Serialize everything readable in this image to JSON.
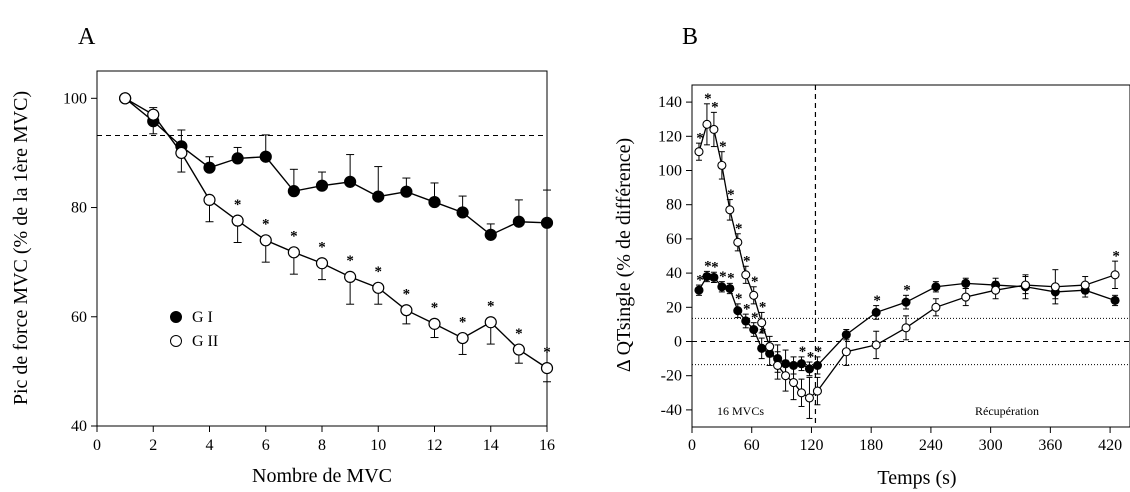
{
  "chart_data": [
    {
      "panel_label": "A",
      "type": "line",
      "xlabel": "Nombre de MVC",
      "ylabel": "Pic de force MVC (% de la 1ère MVC)",
      "xlim": [
        0,
        16
      ],
      "ylim": [
        40,
        105
      ],
      "xticks": [
        0,
        2,
        4,
        6,
        8,
        10,
        12,
        14,
        16
      ],
      "yticks": [
        40,
        60,
        80,
        100
      ],
      "reference_line_y": 93.2,
      "legend_position": "left-middle",
      "series": [
        {
          "name": "G I",
          "marker": "filled-circle",
          "x": [
            1,
            2,
            3,
            4,
            5,
            6,
            7,
            8,
            9,
            10,
            11,
            12,
            13,
            14,
            15,
            16
          ],
          "y": [
            100,
            95.8,
            91.2,
            87.3,
            89,
            89.3,
            83,
            84,
            84.7,
            82,
            82.9,
            81,
            79.1,
            75,
            77.4,
            77.2
          ],
          "err": [
            0,
            2.5,
            3,
            2,
            2,
            4,
            4,
            2.5,
            5,
            5.5,
            2.5,
            3.5,
            3,
            2,
            4,
            6
          ],
          "err_dir": "up",
          "significant": []
        },
        {
          "name": "G II",
          "marker": "open-circle",
          "x": [
            1,
            2,
            3,
            4,
            5,
            6,
            7,
            8,
            9,
            10,
            11,
            12,
            13,
            14,
            15,
            16
          ],
          "y": [
            100,
            97,
            90,
            81.4,
            77.6,
            74,
            71.8,
            69.8,
            67.3,
            65.3,
            61.2,
            58.7,
            56.1,
            59,
            54,
            50.6
          ],
          "err": [
            0,
            3.5,
            3.5,
            4,
            4,
            4,
            4,
            3,
            5,
            3,
            2.5,
            2.5,
            3,
            4,
            2.5,
            2.5
          ],
          "err_dir": "down",
          "significant": [
            5,
            6,
            7,
            8,
            9,
            10,
            11,
            12,
            13,
            14,
            15,
            16
          ]
        }
      ]
    },
    {
      "panel_label": "B",
      "type": "line",
      "xlabel": "Temps (s)",
      "ylabel": "Δ QTsingle (% de différence)",
      "xlim": [
        0,
        440
      ],
      "ylim": [
        -50,
        150
      ],
      "xticks": [
        0,
        60,
        120,
        180,
        240,
        300,
        360,
        420
      ],
      "yticks": [
        -40,
        -20,
        0,
        20,
        40,
        60,
        80,
        100,
        120,
        140
      ],
      "vertical_line_x": 124,
      "dashed_zero_line": 0,
      "dotted_lines_y": [
        13.5,
        -13.5
      ],
      "annotations": [
        {
          "text": "16 MVCs",
          "x": 40,
          "y": -45
        },
        {
          "text": "Récupération",
          "x": 290,
          "y": -45
        }
      ],
      "series": [
        {
          "name": "",
          "marker": "filled-circle",
          "x": [
            7,
            15,
            22,
            30,
            38,
            46,
            54,
            62,
            70,
            78,
            86,
            94,
            102,
            110,
            118,
            126,
            155,
            185,
            215,
            245,
            275,
            305,
            335,
            365,
            395,
            425
          ],
          "y": [
            30,
            38,
            37.5,
            32,
            31,
            18,
            12,
            7,
            -4,
            -7,
            -10,
            -13,
            -14,
            -13,
            -16,
            -14,
            4,
            17,
            23,
            32,
            34,
            33,
            32,
            29,
            30,
            24
          ],
          "err": [
            3,
            3,
            3,
            3,
            3,
            4,
            4,
            4,
            6,
            7,
            8,
            8,
            5,
            4,
            4,
            5,
            3,
            4,
            4,
            3,
            3,
            4,
            7,
            4,
            4,
            3
          ],
          "err_dir": "both",
          "significant": [
            7,
            15,
            22,
            30,
            38,
            46,
            54,
            62,
            70,
            110,
            118,
            126,
            185,
            215
          ]
        },
        {
          "name": "",
          "marker": "open-circle",
          "x": [
            7,
            15,
            22,
            30,
            38,
            46,
            54,
            62,
            70,
            78,
            86,
            94,
            102,
            110,
            118,
            126,
            155,
            185,
            215,
            245,
            275,
            305,
            335,
            365,
            395,
            425
          ],
          "y": [
            111,
            127,
            124,
            103,
            77,
            58,
            39,
            27,
            11,
            -3,
            -14,
            -20,
            -24,
            -30,
            -33,
            -29,
            -6,
            -2,
            8,
            20,
            26,
            30,
            33,
            32,
            33,
            39
          ],
          "err": [
            5,
            12,
            10,
            8,
            6,
            5,
            5,
            5,
            6,
            6,
            8,
            9,
            10,
            8,
            12,
            8,
            8,
            8,
            7,
            5,
            5,
            5,
            5,
            10,
            5,
            8
          ],
          "err_dir": "both",
          "significant": [
            7,
            15,
            22,
            30,
            38,
            46,
            54,
            62,
            70,
            425
          ]
        }
      ]
    }
  ]
}
